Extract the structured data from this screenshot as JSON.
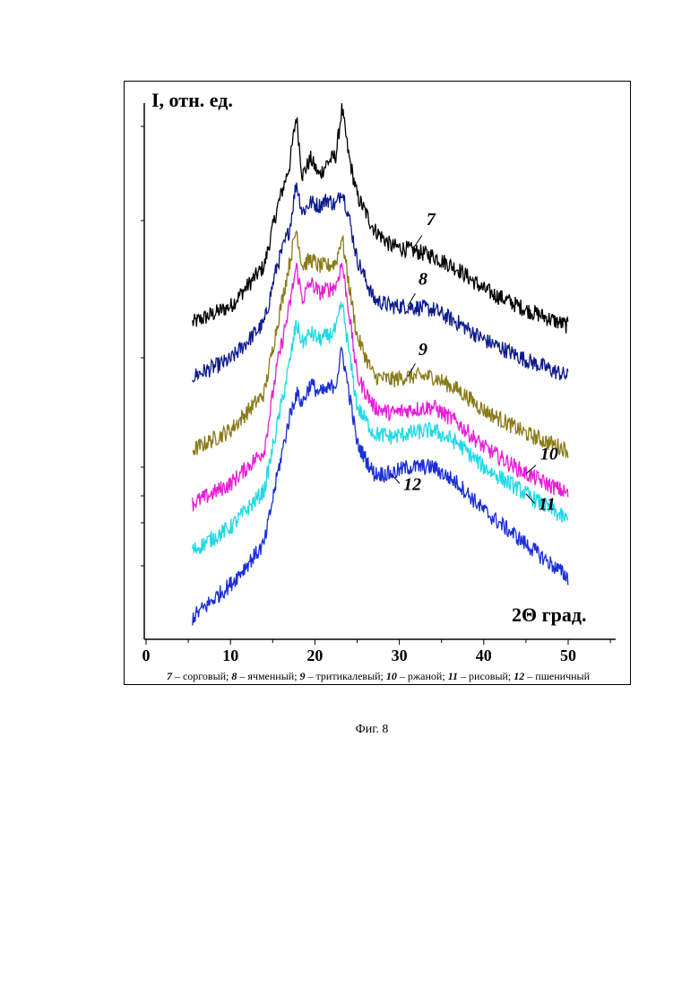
{
  "figure_label": "Фиг. 8",
  "chart_data": {
    "type": "line",
    "ylabel": "I, отн. ед.",
    "xlabel": "2Θ град.",
    "xlim": [
      0,
      55
    ],
    "xticks": [
      0,
      10,
      20,
      30,
      40,
      50
    ],
    "grid": false,
    "legend_caption": [
      {
        "num": "7",
        "text": " – сорговый; "
      },
      {
        "num": "8",
        "text": " – ячменный; "
      },
      {
        "num": "9",
        "text": " – тритикалевый; "
      },
      {
        "num": "10",
        "text": " – ржаной; "
      },
      {
        "num": "11",
        "text": " – рисовый; "
      },
      {
        "num": "12",
        "text": " – пшеничный"
      }
    ],
    "series": [
      {
        "name": "7",
        "color": "#000000",
        "x": [
          5.5,
          10,
          14,
          15.5,
          17,
          17.8,
          18.5,
          19.5,
          20.5,
          21.5,
          22.5,
          23.2,
          24,
          25,
          27,
          29,
          31,
          34,
          37,
          40,
          45,
          50
        ],
        "y": [
          0.38,
          0.43,
          0.55,
          0.72,
          0.85,
          1.0,
          0.82,
          0.87,
          0.82,
          0.86,
          0.88,
          1.02,
          0.88,
          0.76,
          0.66,
          0.61,
          0.6,
          0.58,
          0.54,
          0.48,
          0.42,
          0.37
        ]
      },
      {
        "name": "8",
        "color": "#0d1a8c",
        "x": [
          5.5,
          10,
          14,
          15.5,
          17,
          17.8,
          18.5,
          19.5,
          20.5,
          21.5,
          22.5,
          23.2,
          24,
          25,
          27,
          29,
          31,
          34,
          37,
          40,
          45,
          50
        ],
        "y": [
          0.22,
          0.27,
          0.38,
          0.55,
          0.66,
          0.8,
          0.71,
          0.74,
          0.73,
          0.75,
          0.73,
          0.78,
          0.7,
          0.57,
          0.45,
          0.43,
          0.43,
          0.42,
          0.38,
          0.33,
          0.27,
          0.22
        ]
      },
      {
        "name": "9",
        "color": "#8a7b1a",
        "x": [
          5.5,
          10,
          14,
          15.5,
          17,
          17.8,
          18.5,
          19.5,
          20.5,
          21.5,
          22.5,
          23.2,
          24,
          25,
          27,
          29,
          31,
          34,
          37,
          40,
          45,
          50
        ],
        "y": [
          0.0,
          0.06,
          0.17,
          0.37,
          0.56,
          0.66,
          0.55,
          0.57,
          0.55,
          0.55,
          0.56,
          0.64,
          0.5,
          0.34,
          0.22,
          0.21,
          0.22,
          0.22,
          0.18,
          0.12,
          0.05,
          0.0
        ]
      },
      {
        "name": "10",
        "color": "#e81ed8",
        "x": [
          5.5,
          10,
          14,
          15.5,
          17,
          17.8,
          18.5,
          19.5,
          20.5,
          21.5,
          22.5,
          23.2,
          24,
          25,
          27,
          29,
          31,
          34,
          37,
          40,
          45,
          50
        ],
        "y": [
          -0.16,
          -0.1,
          0.0,
          0.25,
          0.43,
          0.55,
          0.45,
          0.5,
          0.47,
          0.48,
          0.49,
          0.56,
          0.42,
          0.22,
          0.13,
          0.11,
          0.12,
          0.13,
          0.08,
          0.01,
          -0.07,
          -0.13
        ]
      },
      {
        "name": "11",
        "color": "#1fd9e6",
        "x": [
          5.5,
          10,
          14,
          15.5,
          17,
          17.8,
          18.5,
          19.5,
          20.5,
          21.5,
          22.5,
          23.2,
          24,
          25,
          27,
          29,
          31,
          34,
          37,
          40,
          45,
          50
        ],
        "y": [
          -0.3,
          -0.23,
          -0.12,
          0.07,
          0.26,
          0.38,
          0.32,
          0.35,
          0.33,
          0.34,
          0.36,
          0.44,
          0.3,
          0.13,
          0.05,
          0.04,
          0.05,
          0.06,
          0.02,
          -0.05,
          -0.13,
          -0.21
        ]
      },
      {
        "name": "12",
        "color": "#1a2fd6",
        "x": [
          5.5,
          10,
          14,
          15.5,
          17,
          17.8,
          18.5,
          19.5,
          20.5,
          21.5,
          22.5,
          23.2,
          24,
          25,
          27,
          29,
          31,
          34,
          37,
          40,
          45,
          50
        ],
        "y": [
          -0.5,
          -0.4,
          -0.28,
          -0.08,
          0.1,
          0.17,
          0.14,
          0.2,
          0.17,
          0.18,
          0.2,
          0.3,
          0.18,
          0.02,
          -0.07,
          -0.07,
          -0.05,
          -0.05,
          -0.1,
          -0.18,
          -0.28,
          -0.38
        ]
      }
    ],
    "annotations": [
      {
        "label": "7",
        "series": "7",
        "x": 31.5
      },
      {
        "label": "8",
        "series": "8",
        "x": 31.0
      },
      {
        "label": "9",
        "series": "9",
        "x": 31.0
      },
      {
        "label": "10",
        "series": "10",
        "x": 45.0
      },
      {
        "label": "11",
        "series": "11",
        "x": 45.0
      },
      {
        "label": "12",
        "series": "12",
        "x": 29.0
      }
    ]
  }
}
